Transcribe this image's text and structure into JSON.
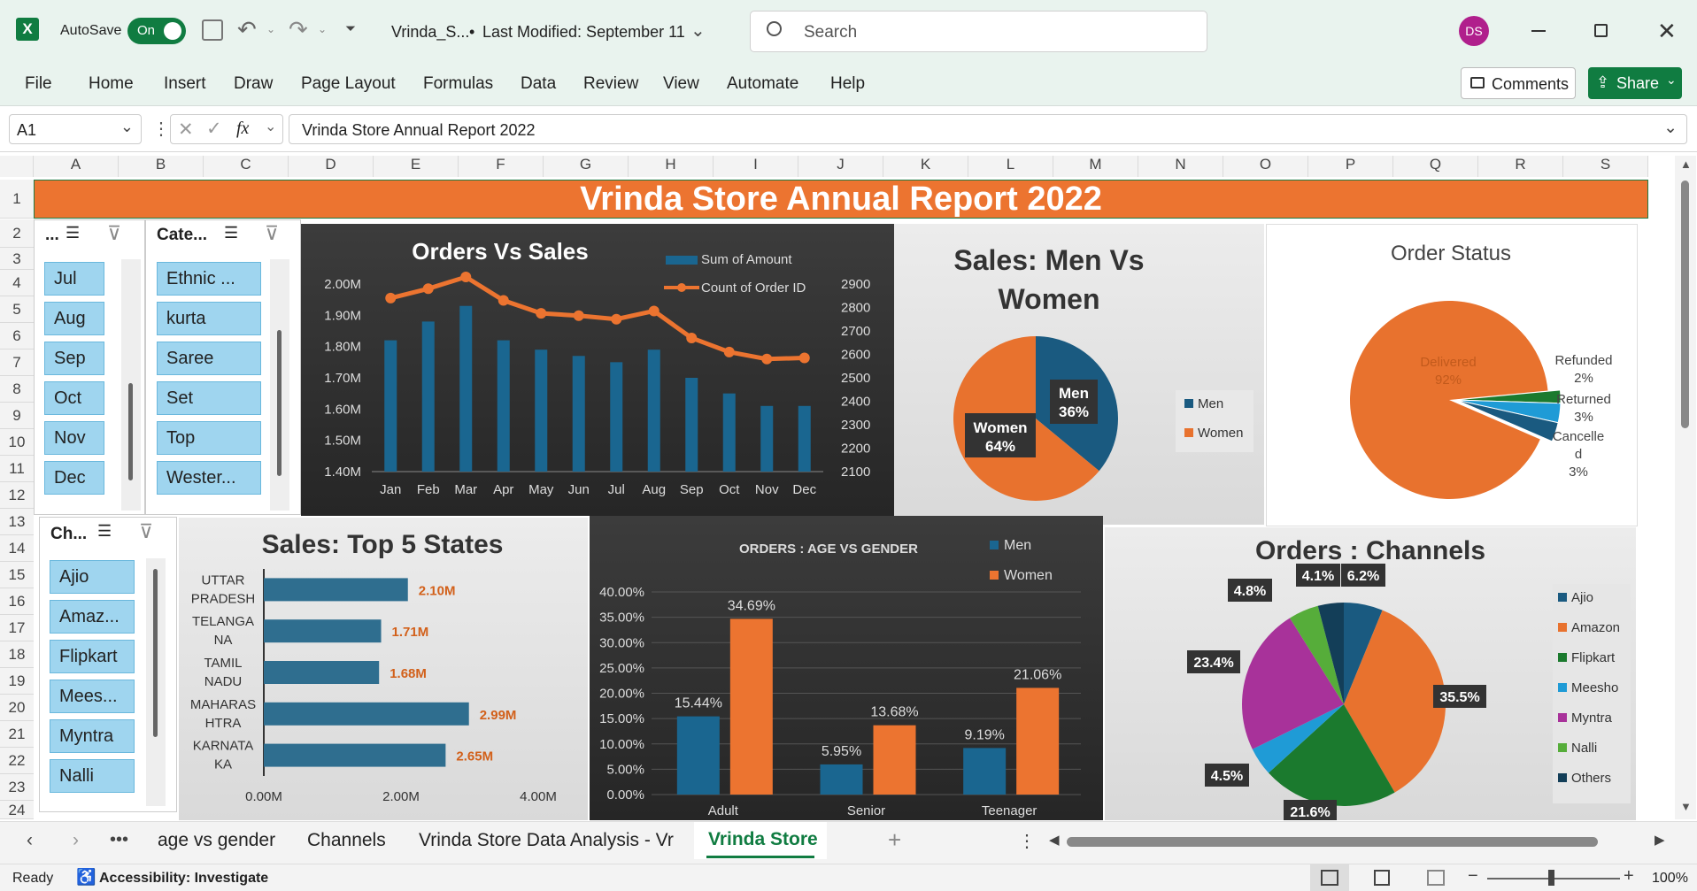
{
  "titlebar": {
    "autosave_label": "AutoSave",
    "autosave_state": "On",
    "file_name": "Vrinda_S...",
    "bullet": "•",
    "last_modified": "Last Modified: September 11",
    "search_placeholder": "Search",
    "user_initials": "DS"
  },
  "menu": [
    "File",
    "Home",
    "Insert",
    "Draw",
    "Page Layout",
    "Formulas",
    "Data",
    "Review",
    "View",
    "Automate",
    "Help"
  ],
  "comments_label": "Comments",
  "share_label": "Share",
  "formula_bar": {
    "name_box": "A1",
    "fx": "fx",
    "formula": "Vrinda Store Annual Report 2022"
  },
  "columns": [
    "A",
    "B",
    "C",
    "D",
    "E",
    "F",
    "G",
    "H",
    "I",
    "J",
    "K",
    "L",
    "M",
    "N",
    "O",
    "P",
    "Q",
    "R",
    "S"
  ],
  "rows": [
    "1",
    "2",
    "3",
    "4",
    "5",
    "6",
    "7",
    "8",
    "9",
    "10",
    "11",
    "12",
    "13",
    "14",
    "15",
    "16",
    "17",
    "18",
    "19",
    "20",
    "21",
    "22",
    "23",
    "24"
  ],
  "banner_title": "Vrinda Store Annual Report 2022",
  "slicer_month": {
    "header": "...",
    "items": [
      "Jul",
      "Aug",
      "Sep",
      "Oct",
      "Nov",
      "Dec"
    ]
  },
  "slicer_category": {
    "header": "Cate...",
    "items": [
      "Ethnic ...",
      "kurta",
      "Saree",
      "Set",
      "Top",
      "Wester..."
    ]
  },
  "slicer_channel": {
    "header": "Ch...",
    "items": [
      "Ajio",
      "Amaz...",
      "Flipkart",
      "Mees...",
      "Myntra",
      "Nalli"
    ]
  },
  "chart_data": [
    {
      "type": "bar",
      "title": "Orders Vs Sales",
      "categories": [
        "Jan",
        "Feb",
        "Mar",
        "Apr",
        "May",
        "Jun",
        "Jul",
        "Aug",
        "Sep",
        "Oct",
        "Nov",
        "Dec"
      ],
      "series": [
        {
          "name": "Sum of Amount",
          "axis": "left",
          "values": [
            1.82,
            1.88,
            1.93,
            1.82,
            1.79,
            1.77,
            1.75,
            1.79,
            1.7,
            1.65,
            1.61,
            1.61
          ]
        },
        {
          "name": "Count of Order ID",
          "axis": "right",
          "type": "line",
          "values": [
            2840,
            2880,
            2930,
            2830,
            2775,
            2765,
            2750,
            2785,
            2670,
            2610,
            2580,
            2585
          ]
        }
      ],
      "yticks_left": [
        "2.00M",
        "1.90M",
        "1.80M",
        "1.70M",
        "1.60M",
        "1.50M",
        "1.40M"
      ],
      "yticks_right": [
        "2900",
        "2800",
        "2700",
        "2600",
        "2500",
        "2400",
        "2300",
        "2200",
        "2100"
      ],
      "ylim_left": [
        1.4,
        2.0
      ],
      "ylim_right": [
        2100,
        2900
      ],
      "legend": "top-right"
    },
    {
      "type": "pie",
      "title": "Sales: Men Vs Women",
      "slices": [
        {
          "label": "Men",
          "value": 36,
          "text": "36%",
          "color": "#1a5a80"
        },
        {
          "label": "Women",
          "value": 64,
          "text": "64%",
          "color": "#e8722e"
        }
      ],
      "legend": "right"
    },
    {
      "type": "pie",
      "title": "Order Status",
      "slices": [
        {
          "label": "Delivered",
          "value": 92,
          "text": "92%",
          "color": "#e8722e"
        },
        {
          "label": "Refunded",
          "value": 2,
          "text": "2%",
          "color": "#1b7a2e"
        },
        {
          "label": "Returned",
          "value": 3,
          "text": "3%",
          "color": "#1f9bd6"
        },
        {
          "label": "Cancelled",
          "value": 3,
          "text": "3%",
          "color": "#1a5a80"
        }
      ],
      "label_text": {
        "cancelled_lines": [
          "Cancelle",
          "d",
          "3%"
        ]
      }
    },
    {
      "type": "bar",
      "orientation": "horizontal",
      "title": "Sales: Top 5 States",
      "categories": [
        [
          "UTTAR",
          "PRADESH"
        ],
        [
          "TELANGA",
          "NA"
        ],
        [
          "TAMIL",
          "NADU"
        ],
        [
          "MAHARAS",
          "HTRA"
        ],
        [
          "KARNATA",
          "KA"
        ]
      ],
      "values": [
        2.1,
        1.71,
        1.68,
        2.99,
        2.65
      ],
      "labels": [
        "2.10M",
        "1.71M",
        "1.68M",
        "2.99M",
        "2.65M"
      ],
      "xticks": [
        "0.00M",
        "2.00M",
        "4.00M"
      ],
      "xlim": [
        0,
        4
      ]
    },
    {
      "type": "bar",
      "title": "ORDERS : AGE VS GENDER",
      "categories": [
        "Adult",
        "Senior",
        "Teenager"
      ],
      "series": [
        {
          "name": "Men",
          "values": [
            15.44,
            5.95,
            9.19
          ],
          "labels": [
            "15.44%",
            "5.95%",
            "9.19%"
          ]
        },
        {
          "name": "Women",
          "values": [
            34.69,
            13.68,
            21.06
          ],
          "labels": [
            "34.69%",
            "13.68%",
            "21.06%"
          ]
        }
      ],
      "yticks": [
        "40.00%",
        "35.00%",
        "30.00%",
        "25.00%",
        "20.00%",
        "15.00%",
        "10.00%",
        "5.00%",
        "0.00%"
      ],
      "ylim": [
        0,
        40
      ],
      "legend": "top-right"
    },
    {
      "type": "pie",
      "title": "Orders : Channels",
      "slices": [
        {
          "label": "Ajio",
          "value": 6.2,
          "text": "6.2%",
          "color": "#1a5a80"
        },
        {
          "label": "Amazon",
          "value": 35.5,
          "text": "35.5%",
          "color": "#e8722e"
        },
        {
          "label": "Flipkart",
          "value": 21.6,
          "text": "21.6%",
          "color": "#1b7a2e"
        },
        {
          "label": "Meesho",
          "value": 4.5,
          "text": "4.5%",
          "color": "#1f9bd6"
        },
        {
          "label": "Myntra",
          "value": 23.4,
          "text": "23.4%",
          "color": "#a8329a"
        },
        {
          "label": "Nalli",
          "value": 4.8,
          "text": "4.8%",
          "color": "#56ad3a"
        },
        {
          "label": "Others",
          "value": 4.1,
          "text": "4.1%",
          "color": "#133e58"
        }
      ],
      "legend": "right"
    }
  ],
  "sheet_tabs": [
    "age vs gender",
    "Channels",
    "Vrinda Store Data Analysis - Vr",
    "Vrinda Store"
  ],
  "active_tab": "Vrinda Store",
  "status": {
    "ready": "Ready",
    "accessibility": "Accessibility: Investigate",
    "zoom": "100%"
  }
}
